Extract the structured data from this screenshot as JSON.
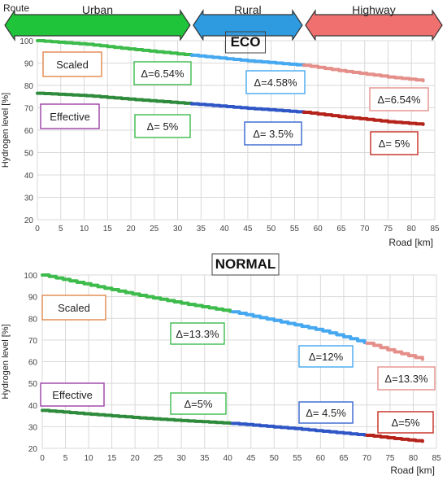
{
  "route_bar": {
    "label": "Route",
    "segments": [
      {
        "label": "Urban",
        "color": "#1fc43a",
        "from_km": 0,
        "to_km": 33
      },
      {
        "label": "Rural",
        "color": "#2e9be0",
        "to_km": 57
      },
      {
        "label": "Highway",
        "color": "#f07070",
        "to_km": 85
      }
    ]
  },
  "colors": {
    "urban_line": "#3dbb4b",
    "rural_line_scaled": "#45a8f0",
    "highway_line_scaled": "#e58f8a",
    "urban_line_eff": "#2e8b3c",
    "rural_line_eff": "#2f56c6",
    "highway_line_eff": "#b5231a",
    "box_scaled": "#e0874a",
    "box_effective": "#9b3fa6"
  },
  "chart_data": [
    {
      "type": "line",
      "title": "ECO",
      "xlabel": "Road [km]",
      "ylabel": "Hydrogen level [%]",
      "xlim": [
        0,
        85
      ],
      "ylim": [
        20,
        100
      ],
      "xticks": [
        0,
        5,
        10,
        15,
        20,
        25,
        30,
        35,
        40,
        45,
        50,
        55,
        60,
        65,
        70,
        75,
        80,
        85
      ],
      "yticks": [
        20,
        30,
        40,
        50,
        60,
        70,
        80,
        90,
        100
      ],
      "grid": true,
      "segment_breaks_km": [
        33,
        57
      ],
      "series": [
        {
          "name": "Scaled",
          "points": [
            [
              0,
              100
            ],
            [
              10,
              98.5
            ],
            [
              20,
              96.2
            ],
            [
              33,
              93.5
            ],
            [
              45,
              91.0
            ],
            [
              57,
              89.0
            ],
            [
              65,
              86.5
            ],
            [
              75,
              83.8
            ],
            [
              83,
              82.0
            ]
          ]
        },
        {
          "name": "Effective",
          "points": [
            [
              0,
              76.5
            ],
            [
              10,
              75.5
            ],
            [
              20,
              73.8
            ],
            [
              33,
              71.8
            ],
            [
              45,
              69.8
            ],
            [
              57,
              68.0
            ],
            [
              65,
              66.0
            ],
            [
              75,
              63.8
            ],
            [
              83,
              62.5
            ]
          ]
        }
      ],
      "annotations": [
        {
          "text": "Δ=6.54%",
          "series": "Scaled",
          "segment": 0
        },
        {
          "text": "Δ=4.58%",
          "series": "Scaled",
          "segment": 1
        },
        {
          "text": "Δ=6.54%",
          "series": "Scaled",
          "segment": 2
        },
        {
          "text": "Δ= 5%",
          "series": "Effective",
          "segment": 0
        },
        {
          "text": "Δ=  3.5%",
          "series": "Effective",
          "segment": 1
        },
        {
          "text": "Δ= 5%",
          "series": "Effective",
          "segment": 2
        }
      ]
    },
    {
      "type": "line",
      "title": "NORMAL",
      "xlabel": "Road [km]",
      "ylabel": "Hydrogen level [%]",
      "xlim": [
        0,
        85
      ],
      "ylim": [
        20,
        100
      ],
      "xticks": [
        0,
        5,
        10,
        15,
        20,
        25,
        30,
        35,
        40,
        45,
        50,
        55,
        60,
        65,
        70,
        75,
        80,
        85
      ],
      "yticks": [
        20,
        30,
        40,
        50,
        60,
        70,
        80,
        90,
        100
      ],
      "grid": true,
      "segment_breaks_km": [
        41,
        70
      ],
      "series": [
        {
          "name": "Scaled",
          "points": [
            [
              0,
              100
            ],
            [
              10,
              95.5
            ],
            [
              20,
              91.0
            ],
            [
              30,
              87.0
            ],
            [
              41,
              83.0
            ],
            [
              50,
              79.0
            ],
            [
              60,
              74.5
            ],
            [
              70,
              68.5
            ],
            [
              76,
              64.5
            ],
            [
              83,
              60.5
            ]
          ]
        },
        {
          "name": "Effective",
          "points": [
            [
              0,
              37.5
            ],
            [
              10,
              35.8
            ],
            [
              20,
              34.2
            ],
            [
              30,
              32.8
            ],
            [
              41,
              31.5
            ],
            [
              55,
              29.0
            ],
            [
              70,
              26.0
            ],
            [
              76,
              24.5
            ],
            [
              83,
              23.0
            ]
          ]
        }
      ],
      "annotations": [
        {
          "text": "Δ=13.3%",
          "series": "Scaled",
          "segment": 0
        },
        {
          "text": "Δ=12%",
          "series": "Scaled",
          "segment": 1
        },
        {
          "text": "Δ=13.3%",
          "series": "Scaled",
          "segment": 2
        },
        {
          "text": "Δ=5%",
          "series": "Effective",
          "segment": 0
        },
        {
          "text": "Δ= 4.5%",
          "series": "Effective",
          "segment": 1
        },
        {
          "text": "Δ=5%",
          "series": "Effective",
          "segment": 2
        }
      ]
    }
  ]
}
